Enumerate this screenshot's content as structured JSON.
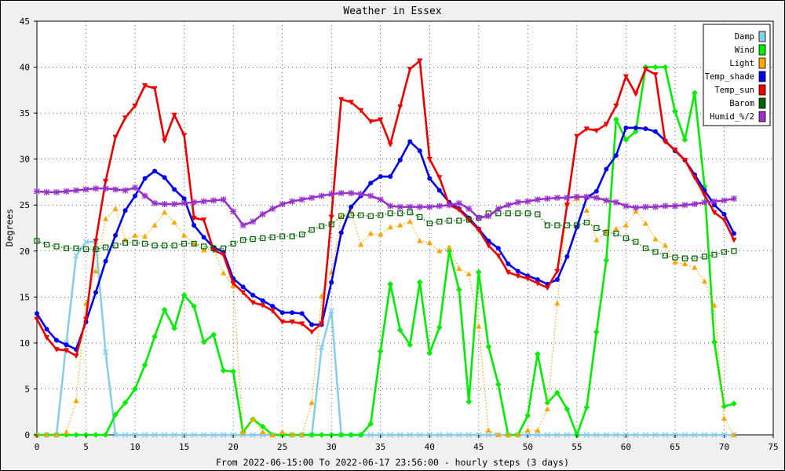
{
  "chart_data": {
    "type": "line",
    "title": "Weather in Essex",
    "xlabel": "From 2022-06-15:00 To 2022-06-17 23:56:00 - hourly steps (3 days)",
    "ylabel": "Degrees",
    "xlim": [
      0,
      75
    ],
    "ylim": [
      0,
      45
    ],
    "xticks": [
      0,
      5,
      10,
      15,
      20,
      25,
      30,
      35,
      40,
      45,
      50,
      55,
      60,
      65,
      70,
      75
    ],
    "yticks": [
      0,
      5,
      10,
      15,
      20,
      25,
      30,
      35,
      40,
      45
    ],
    "grid": true,
    "legend": "top-right",
    "series": [
      {
        "name": "Damp",
        "color": "#87ceeb",
        "marker": "x",
        "style": "solid",
        "x": [
          0,
          1,
          2,
          3,
          4,
          5,
          6,
          7,
          8,
          9,
          10,
          11,
          12,
          13,
          14,
          15,
          16,
          17,
          18,
          19,
          20,
          21,
          22,
          23,
          24,
          25,
          26,
          27,
          28,
          29,
          30,
          31,
          32,
          33,
          34,
          35,
          36,
          37,
          38,
          39,
          40,
          41,
          42,
          43,
          44,
          45,
          46,
          47,
          48,
          49,
          50,
          51,
          52,
          53,
          54,
          55,
          56,
          57,
          58,
          59,
          60,
          61,
          62,
          63,
          64,
          65,
          66,
          67,
          68,
          69,
          70,
          71
        ],
        "y": [
          0,
          0,
          0,
          10,
          19.5,
          21,
          21,
          9,
          0,
          0,
          0,
          0,
          0,
          0,
          0,
          0,
          0,
          0,
          0,
          0,
          0,
          0,
          0,
          0,
          0,
          0,
          0,
          0,
          0,
          9.5,
          13.5,
          0,
          0,
          0,
          0,
          0,
          0,
          0,
          0,
          0,
          0,
          0,
          0,
          0,
          0,
          0,
          0,
          0,
          0,
          0,
          0,
          0,
          0,
          0,
          0,
          0,
          0,
          0,
          0,
          0,
          0,
          0,
          0,
          0,
          0,
          0,
          0,
          0,
          0,
          0,
          0,
          0
        ]
      },
      {
        "name": "Wind",
        "color": "#00ee00",
        "marker": "diamond",
        "style": "solid",
        "x": [
          0,
          1,
          2,
          3,
          4,
          5,
          6,
          7,
          8,
          9,
          10,
          11,
          12,
          13,
          14,
          15,
          16,
          17,
          18,
          19,
          20,
          21,
          22,
          23,
          24,
          25,
          26,
          27,
          28,
          29,
          30,
          31,
          32,
          33,
          34,
          35,
          36,
          37,
          38,
          39,
          40,
          41,
          42,
          43,
          44,
          45,
          46,
          47,
          48,
          49,
          50,
          51,
          52,
          53,
          54,
          55,
          56,
          57,
          58,
          59,
          60,
          61,
          62,
          63,
          64,
          65,
          66,
          67,
          68,
          69,
          70,
          71
        ],
        "y": [
          0,
          0,
          0,
          0,
          0,
          0,
          0,
          0,
          2.2,
          3.5,
          5,
          7.6,
          10.7,
          13.6,
          11.6,
          15.2,
          14,
          10.1,
          10.9,
          7,
          6.9,
          0.3,
          1.7,
          0.9,
          0,
          0,
          0,
          0,
          0,
          0,
          0,
          0,
          0,
          0,
          1.2,
          9.1,
          16.4,
          11.4,
          9.8,
          16.6,
          8.9,
          11.7,
          20,
          15.8,
          3.6,
          17.7,
          9.6,
          5.5,
          0,
          0,
          2.1,
          8.8,
          3.5,
          4.6,
          2.8,
          0,
          3,
          11.2,
          19,
          34.3,
          32.1,
          33,
          40,
          40,
          40,
          35.2,
          32.1,
          37.2,
          27,
          10.1,
          3.1,
          3.4
        ]
      },
      {
        "name": "Light",
        "color": "#ffa500",
        "marker": "triangle",
        "style": "dotted",
        "x": [
          0,
          1,
          2,
          3,
          4,
          5,
          6,
          7,
          8,
          9,
          10,
          11,
          12,
          13,
          14,
          15,
          16,
          17,
          18,
          19,
          20,
          21,
          22,
          23,
          24,
          25,
          26,
          27,
          28,
          29,
          30,
          31,
          32,
          33,
          34,
          35,
          36,
          37,
          38,
          39,
          40,
          41,
          42,
          43,
          44,
          45,
          46,
          47,
          48,
          49,
          50,
          51,
          52,
          53,
          54,
          55,
          56,
          57,
          58,
          59,
          60,
          61,
          62,
          63,
          64,
          65,
          66,
          67,
          68,
          69,
          70,
          71
        ],
        "y": [
          0,
          0,
          0,
          0.3,
          3.7,
          14.3,
          17.8,
          23.5,
          24.6,
          21.2,
          21.7,
          21.6,
          22.8,
          24.2,
          23.1,
          21.7,
          20.8,
          20.1,
          20.3,
          17.6,
          16.2,
          0.3,
          1.7,
          0.3,
          0,
          0.3,
          0,
          0,
          3.5,
          15.1,
          17.7,
          23.7,
          24.3,
          20.7,
          21.9,
          21.8,
          22.6,
          22.8,
          23.2,
          21.1,
          20.9,
          20,
          20.4,
          18.1,
          17.5,
          11.8,
          0.5,
          0,
          0,
          0,
          0.5,
          0.5,
          2.8,
          14.3,
          25.1,
          25.7,
          24.4,
          21.2,
          22.1,
          22.4,
          22.8,
          24.3,
          23,
          21.3,
          20.6,
          18.8,
          18.6,
          18.2,
          16.7,
          14.1,
          1.8,
          0
        ]
      },
      {
        "name": "Temp_shade",
        "color": "#0000ee",
        "marker": "circle",
        "style": "solid",
        "x": [
          0,
          1,
          2,
          3,
          4,
          5,
          6,
          7,
          8,
          9,
          10,
          11,
          12,
          13,
          14,
          15,
          16,
          17,
          18,
          19,
          20,
          21,
          22,
          23,
          24,
          25,
          26,
          27,
          28,
          29,
          30,
          31,
          32,
          33,
          34,
          35,
          36,
          37,
          38,
          39,
          40,
          41,
          42,
          43,
          44,
          45,
          46,
          47,
          48,
          49,
          50,
          51,
          52,
          53,
          54,
          55,
          56,
          57,
          58,
          59,
          60,
          61,
          62,
          63,
          64,
          65,
          66,
          67,
          68,
          69,
          70,
          71
        ],
        "y": [
          13.2,
          11.5,
          10.3,
          9.8,
          9.3,
          12.3,
          15.5,
          18.9,
          21.7,
          24.4,
          26,
          27.9,
          28.7,
          28,
          26.7,
          25.7,
          22.8,
          21.5,
          20.4,
          19.9,
          17,
          16.1,
          15.2,
          14.6,
          14,
          13.3,
          13.3,
          13.2,
          12,
          12,
          16.6,
          22,
          24.8,
          26,
          27.4,
          28.1,
          28.1,
          29.9,
          31.9,
          30.9,
          27.9,
          26.6,
          25.3,
          24.6,
          23.6,
          22.4,
          21.1,
          20.3,
          18.6,
          17.8,
          17.3,
          16.9,
          16.4,
          16.9,
          19.4,
          22.6,
          25.8,
          26.5,
          28.9,
          30.4,
          33.4,
          33.4,
          33.3,
          33,
          32,
          30.9,
          29.9,
          28.3,
          26.6,
          25,
          24,
          21.9
        ]
      },
      {
        "name": "Temp_sun",
        "color": "#ee0000",
        "marker": "triangle-down",
        "style": "solid",
        "x": [
          0,
          1,
          2,
          3,
          4,
          5,
          6,
          7,
          8,
          9,
          10,
          11,
          12,
          13,
          14,
          15,
          16,
          17,
          18,
          19,
          20,
          21,
          22,
          23,
          24,
          25,
          26,
          27,
          28,
          29,
          30,
          31,
          32,
          33,
          34,
          35,
          36,
          37,
          38,
          39,
          40,
          41,
          42,
          43,
          44,
          45,
          46,
          47,
          48,
          49,
          50,
          51,
          52,
          53,
          54,
          55,
          56,
          57,
          58,
          59,
          60,
          61,
          62,
          63,
          64,
          65,
          66,
          67,
          68,
          69,
          70,
          71
        ],
        "y": [
          12.6,
          10.6,
          9.3,
          9.2,
          8.6,
          12.6,
          21.1,
          27.6,
          32.4,
          34.5,
          35.8,
          38,
          37.7,
          32,
          34.8,
          32.6,
          23.6,
          23.4,
          20.1,
          19.6,
          16.5,
          15.5,
          14.4,
          14.1,
          13.5,
          12.3,
          12.3,
          12.1,
          11.2,
          12.1,
          23.7,
          36.5,
          36.2,
          35.3,
          34.1,
          34.3,
          31.6,
          35.7,
          39.8,
          40.7,
          30,
          28,
          25,
          24.5,
          23.4,
          22.3,
          20.6,
          19.5,
          17.7,
          17.3,
          17,
          16.5,
          16,
          17.8,
          25,
          32.5,
          33.3,
          33.1,
          33.8,
          35.8,
          39,
          37.1,
          39.8,
          39.2,
          31.9,
          31,
          29.9,
          28,
          26.1,
          24.2,
          23.4,
          21.2
        ]
      },
      {
        "name": "Barom",
        "color": "#006400",
        "marker": "square",
        "style": "dotted",
        "x": [
          0,
          1,
          2,
          3,
          4,
          5,
          6,
          7,
          8,
          9,
          10,
          11,
          12,
          13,
          14,
          15,
          16,
          17,
          18,
          19,
          20,
          21,
          22,
          23,
          24,
          25,
          26,
          27,
          28,
          29,
          30,
          31,
          32,
          33,
          34,
          35,
          36,
          37,
          38,
          39,
          40,
          41,
          42,
          43,
          44,
          45,
          46,
          47,
          48,
          49,
          50,
          51,
          52,
          53,
          54,
          55,
          56,
          57,
          58,
          59,
          60,
          61,
          62,
          63,
          64,
          65,
          66,
          67,
          68,
          69,
          70,
          71
        ],
        "y": [
          21.1,
          20.7,
          20.5,
          20.3,
          20.3,
          20.2,
          20.2,
          20.4,
          20.6,
          20.9,
          20.9,
          20.8,
          20.6,
          20.6,
          20.6,
          20.8,
          20.8,
          20.5,
          20.3,
          20.3,
          20.8,
          21.2,
          21.3,
          21.4,
          21.5,
          21.6,
          21.6,
          21.8,
          22.3,
          22.7,
          22.9,
          23.8,
          23.9,
          23.9,
          23.8,
          23.9,
          24.1,
          24.1,
          24.2,
          23.7,
          23,
          23.2,
          23.3,
          23.3,
          23.4,
          23.6,
          24.1,
          24.1,
          24.1,
          24.1,
          24.1,
          24,
          22.8,
          22.8,
          22.8,
          22.8,
          23.1,
          22.5,
          22,
          21.9,
          21.4,
          21,
          20.3,
          19.9,
          19.5,
          19.3,
          19.2,
          19.2,
          19.4,
          19.6,
          19.9,
          20
        ]
      },
      {
        "name": "Humid_%/2",
        "color": "#9932cc",
        "marker": "star",
        "style": "solid",
        "x": [
          0,
          1,
          2,
          3,
          4,
          5,
          6,
          7,
          8,
          9,
          10,
          11,
          12,
          13,
          14,
          15,
          16,
          17,
          18,
          19,
          20,
          21,
          22,
          23,
          24,
          25,
          26,
          27,
          28,
          29,
          30,
          31,
          32,
          33,
          34,
          35,
          36,
          37,
          38,
          39,
          40,
          41,
          42,
          43,
          44,
          45,
          46,
          47,
          48,
          49,
          50,
          51,
          52,
          53,
          54,
          55,
          56,
          57,
          58,
          59,
          60,
          61,
          62,
          63,
          64,
          65,
          66,
          67,
          68,
          69,
          70,
          71
        ],
        "y": [
          26.5,
          26.4,
          26.4,
          26.5,
          26.6,
          26.7,
          26.8,
          26.8,
          26.7,
          26.6,
          26.9,
          26,
          25.2,
          25.1,
          25.1,
          25.2,
          25.3,
          25.4,
          25.5,
          25.6,
          24.3,
          22.8,
          23.2,
          24,
          24.6,
          25.1,
          25.4,
          25.6,
          25.8,
          26,
          26.2,
          26.3,
          26.3,
          26.2,
          26,
          25.6,
          24.9,
          24.8,
          24.8,
          24.8,
          24.8,
          24.9,
          25,
          25.2,
          24.6,
          23.6,
          23.8,
          24.6,
          25,
          25.3,
          25.4,
          25.6,
          25.7,
          25.8,
          25.8,
          25.9,
          25.9,
          25.8,
          25.5,
          25.3,
          24.9,
          24.7,
          24.8,
          24.8,
          24.9,
          24.9,
          25,
          25.1,
          25.3,
          25.4,
          25.5,
          25.7
        ]
      }
    ]
  }
}
